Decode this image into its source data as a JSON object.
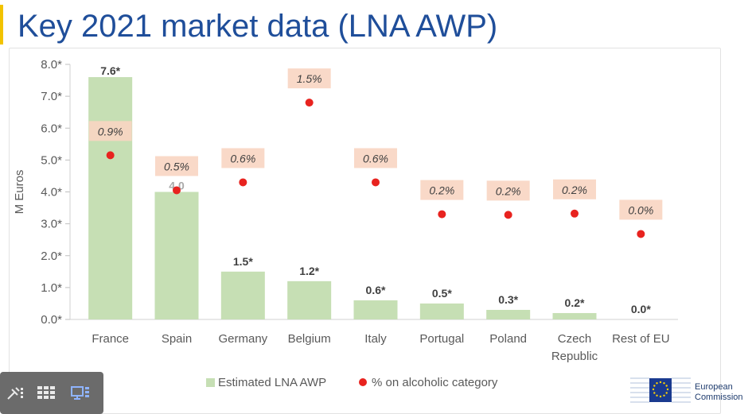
{
  "slide": {
    "title": "Key 2021 market data (LNA AWP)"
  },
  "chart_data": {
    "type": "bar",
    "ylabel": "M Euros",
    "ylim": [
      0,
      8
    ],
    "yticks": [
      "0.0*",
      "1.0*",
      "2.0*",
      "3.0*",
      "4.0*",
      "5.0*",
      "6.0*",
      "7.0*",
      "8.0*"
    ],
    "categories": [
      "France",
      "Spain",
      "Germany",
      "Belgium",
      "Italy",
      "Portugal",
      "Poland",
      "Czech\nRepublic",
      "Rest of EU"
    ],
    "series": [
      {
        "name": "Estimated LNA AWP",
        "color": "#c6dfb4",
        "values": [
          7.6,
          4.0,
          1.5,
          1.2,
          0.6,
          0.5,
          0.3,
          0.2,
          0.0
        ],
        "labels": [
          "7.6*",
          "4.0",
          "1.5*",
          "1.2*",
          "0.6*",
          "0.5*",
          "0.3*",
          "0.2*",
          "0.0*"
        ]
      },
      {
        "name": "% on alcoholic category",
        "color": "#e8231f",
        "marker": "dot",
        "values": [
          0.9,
          0.5,
          0.6,
          1.5,
          0.6,
          0.2,
          0.2,
          0.2,
          0.0
        ],
        "labels": [
          "0.9%",
          "0.5%",
          "0.6%",
          "1.5%",
          "0.6%",
          "0.2%",
          "0.2%",
          "0.2%",
          "0.0%"
        ],
        "label_bg": "#f8d5c2",
        "plot_y": [
          5.15,
          4.05,
          4.3,
          6.8,
          4.3,
          3.3,
          3.28,
          3.32,
          2.68
        ]
      }
    ],
    "grid": false,
    "legend_position": "bottom"
  },
  "toolbar": {
    "icons": [
      "pointer-icon",
      "grid-view-icon",
      "presenter-view-icon"
    ]
  },
  "logo": {
    "line1": "European",
    "line2": "Commission"
  }
}
